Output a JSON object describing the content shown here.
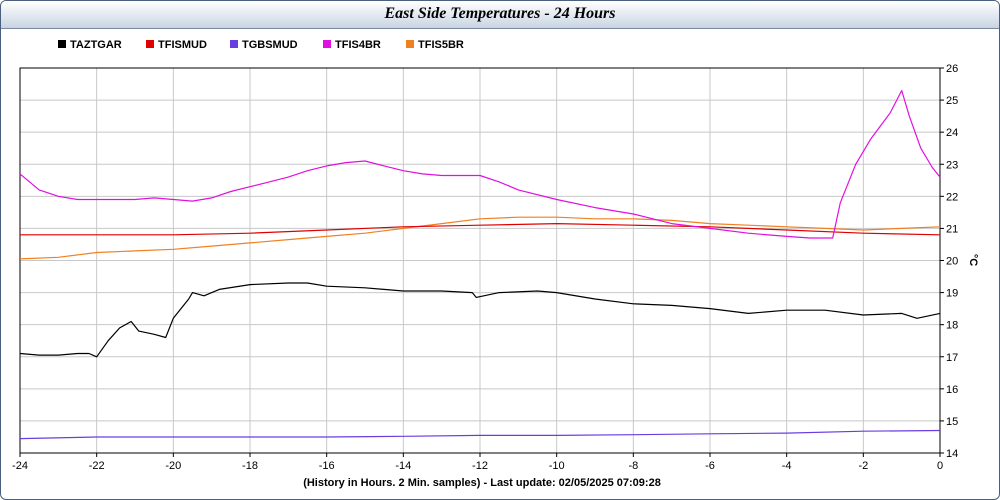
{
  "chart_data": {
    "type": "line",
    "title": "East Side Temperatures - 24 Hours",
    "xlabel": "(History in Hours. 2 Min. samples) - Last update: 02/05/2025 07:09:28",
    "ylabel": "°C",
    "xlim": [
      -24,
      0
    ],
    "ylim": [
      14,
      26
    ],
    "xticks": [
      "-24",
      "-22",
      "-20",
      "-18",
      "-16",
      "-14",
      "-12",
      "-10",
      "-8",
      "-6",
      "-4",
      "-2",
      "0"
    ],
    "yticks": [
      "14",
      "15",
      "16",
      "17",
      "18",
      "19",
      "20",
      "21",
      "22",
      "23",
      "24",
      "25",
      "26"
    ],
    "grid": true,
    "legend_position": "top-left",
    "series": [
      {
        "name": "TAZTGAR",
        "color": "#000000",
        "points": [
          [
            -24,
            17.1
          ],
          [
            -23.5,
            17.05
          ],
          [
            -23,
            17.05
          ],
          [
            -22.5,
            17.1
          ],
          [
            -22.2,
            17.1
          ],
          [
            -22,
            17.0
          ],
          [
            -21.7,
            17.5
          ],
          [
            -21.4,
            17.9
          ],
          [
            -21.1,
            18.1
          ],
          [
            -20.9,
            17.8
          ],
          [
            -20.5,
            17.7
          ],
          [
            -20.2,
            17.6
          ],
          [
            -20,
            18.2
          ],
          [
            -19.6,
            18.8
          ],
          [
            -19.5,
            19.0
          ],
          [
            -19.2,
            18.9
          ],
          [
            -18.8,
            19.1
          ],
          [
            -18,
            19.25
          ],
          [
            -17,
            19.3
          ],
          [
            -16.5,
            19.3
          ],
          [
            -16,
            19.2
          ],
          [
            -15,
            19.15
          ],
          [
            -14,
            19.05
          ],
          [
            -13,
            19.05
          ],
          [
            -12.2,
            19.0
          ],
          [
            -12.1,
            18.85
          ],
          [
            -11.5,
            19.0
          ],
          [
            -10.5,
            19.05
          ],
          [
            -10,
            19.0
          ],
          [
            -9,
            18.8
          ],
          [
            -8,
            18.65
          ],
          [
            -7,
            18.6
          ],
          [
            -6,
            18.5
          ],
          [
            -5,
            18.35
          ],
          [
            -4,
            18.45
          ],
          [
            -3,
            18.45
          ],
          [
            -2,
            18.3
          ],
          [
            -1,
            18.35
          ],
          [
            -0.6,
            18.2
          ],
          [
            0,
            18.35
          ]
        ]
      },
      {
        "name": "TFISMUD",
        "color": "#e00000",
        "points": [
          [
            -24,
            20.8
          ],
          [
            -22,
            20.8
          ],
          [
            -20,
            20.8
          ],
          [
            -18,
            20.85
          ],
          [
            -16,
            20.95
          ],
          [
            -14,
            21.05
          ],
          [
            -12,
            21.1
          ],
          [
            -10,
            21.15
          ],
          [
            -8,
            21.1
          ],
          [
            -6,
            21.05
          ],
          [
            -4,
            20.95
          ],
          [
            -2,
            20.85
          ],
          [
            0,
            20.8
          ]
        ]
      },
      {
        "name": "TGBSMUD",
        "color": "#6a3de0",
        "points": [
          [
            -24,
            14.45
          ],
          [
            -22,
            14.5
          ],
          [
            -20,
            14.5
          ],
          [
            -18,
            14.5
          ],
          [
            -16,
            14.5
          ],
          [
            -14,
            14.52
          ],
          [
            -12,
            14.55
          ],
          [
            -10,
            14.55
          ],
          [
            -8,
            14.57
          ],
          [
            -6,
            14.6
          ],
          [
            -4,
            14.62
          ],
          [
            -2,
            14.68
          ],
          [
            0,
            14.7
          ]
        ]
      },
      {
        "name": "TFIS4BR",
        "color": "#e010e0",
        "points": [
          [
            -24,
            22.7
          ],
          [
            -23.5,
            22.2
          ],
          [
            -23,
            22.0
          ],
          [
            -22.5,
            21.9
          ],
          [
            -22,
            21.9
          ],
          [
            -21,
            21.9
          ],
          [
            -20.5,
            21.95
          ],
          [
            -20,
            21.9
          ],
          [
            -19.5,
            21.85
          ],
          [
            -19,
            21.95
          ],
          [
            -18.5,
            22.15
          ],
          [
            -18,
            22.3
          ],
          [
            -17.5,
            22.45
          ],
          [
            -17,
            22.6
          ],
          [
            -16.5,
            22.8
          ],
          [
            -16,
            22.95
          ],
          [
            -15.5,
            23.05
          ],
          [
            -15,
            23.1
          ],
          [
            -14.5,
            22.95
          ],
          [
            -14,
            22.8
          ],
          [
            -13.5,
            22.7
          ],
          [
            -13,
            22.65
          ],
          [
            -12,
            22.65
          ],
          [
            -11.5,
            22.45
          ],
          [
            -11,
            22.2
          ],
          [
            -10,
            21.9
          ],
          [
            -9,
            21.65
          ],
          [
            -8,
            21.45
          ],
          [
            -7,
            21.15
          ],
          [
            -6,
            21.0
          ],
          [
            -5,
            20.85
          ],
          [
            -4,
            20.75
          ],
          [
            -3.4,
            20.7
          ],
          [
            -2.8,
            20.7
          ],
          [
            -2.6,
            21.8
          ],
          [
            -2.2,
            23.0
          ],
          [
            -1.8,
            23.8
          ],
          [
            -1.3,
            24.6
          ],
          [
            -1,
            25.3
          ],
          [
            -0.8,
            24.5
          ],
          [
            -0.5,
            23.5
          ],
          [
            -0.2,
            22.9
          ],
          [
            0,
            22.6
          ]
        ]
      },
      {
        "name": "TFIS5BR",
        "color": "#f08020",
        "points": [
          [
            -24,
            20.05
          ],
          [
            -23,
            20.1
          ],
          [
            -22,
            20.25
          ],
          [
            -21,
            20.3
          ],
          [
            -20,
            20.35
          ],
          [
            -19,
            20.45
          ],
          [
            -18,
            20.55
          ],
          [
            -17,
            20.65
          ],
          [
            -16,
            20.75
          ],
          [
            -15,
            20.85
          ],
          [
            -14,
            21.0
          ],
          [
            -13,
            21.15
          ],
          [
            -12,
            21.3
          ],
          [
            -11,
            21.35
          ],
          [
            -10,
            21.35
          ],
          [
            -9,
            21.3
          ],
          [
            -8,
            21.3
          ],
          [
            -7,
            21.25
          ],
          [
            -6,
            21.15
          ],
          [
            -5,
            21.1
          ],
          [
            -4,
            21.05
          ],
          [
            -3,
            21.0
          ],
          [
            -2,
            20.95
          ],
          [
            -1,
            21.0
          ],
          [
            0,
            21.05
          ]
        ]
      }
    ]
  }
}
